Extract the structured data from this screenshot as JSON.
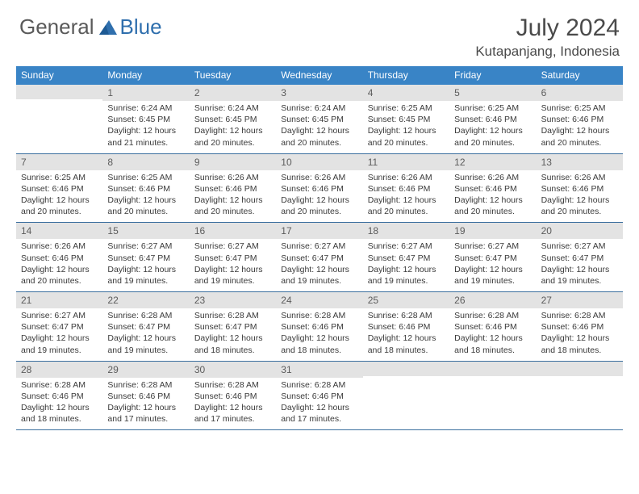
{
  "brand": {
    "word1": "General",
    "word2": "Blue"
  },
  "title": "July 2024",
  "location": "Kutapanjang, Indonesia",
  "colors": {
    "header_bg": "#3984c6",
    "header_text": "#ffffff",
    "daynum_bg": "#e3e3e3",
    "week_border": "#3b6f9e",
    "text": "#3a3a3a"
  },
  "dow": [
    "Sunday",
    "Monday",
    "Tuesday",
    "Wednesday",
    "Thursday",
    "Friday",
    "Saturday"
  ],
  "weeks": [
    [
      {
        "n": "",
        "sr": "",
        "ss": "",
        "dl": ""
      },
      {
        "n": "1",
        "sr": "6:24 AM",
        "ss": "6:45 PM",
        "dl": "12 hours and 21 minutes."
      },
      {
        "n": "2",
        "sr": "6:24 AM",
        "ss": "6:45 PM",
        "dl": "12 hours and 20 minutes."
      },
      {
        "n": "3",
        "sr": "6:24 AM",
        "ss": "6:45 PM",
        "dl": "12 hours and 20 minutes."
      },
      {
        "n": "4",
        "sr": "6:25 AM",
        "ss": "6:45 PM",
        "dl": "12 hours and 20 minutes."
      },
      {
        "n": "5",
        "sr": "6:25 AM",
        "ss": "6:46 PM",
        "dl": "12 hours and 20 minutes."
      },
      {
        "n": "6",
        "sr": "6:25 AM",
        "ss": "6:46 PM",
        "dl": "12 hours and 20 minutes."
      }
    ],
    [
      {
        "n": "7",
        "sr": "6:25 AM",
        "ss": "6:46 PM",
        "dl": "12 hours and 20 minutes."
      },
      {
        "n": "8",
        "sr": "6:25 AM",
        "ss": "6:46 PM",
        "dl": "12 hours and 20 minutes."
      },
      {
        "n": "9",
        "sr": "6:26 AM",
        "ss": "6:46 PM",
        "dl": "12 hours and 20 minutes."
      },
      {
        "n": "10",
        "sr": "6:26 AM",
        "ss": "6:46 PM",
        "dl": "12 hours and 20 minutes."
      },
      {
        "n": "11",
        "sr": "6:26 AM",
        "ss": "6:46 PM",
        "dl": "12 hours and 20 minutes."
      },
      {
        "n": "12",
        "sr": "6:26 AM",
        "ss": "6:46 PM",
        "dl": "12 hours and 20 minutes."
      },
      {
        "n": "13",
        "sr": "6:26 AM",
        "ss": "6:46 PM",
        "dl": "12 hours and 20 minutes."
      }
    ],
    [
      {
        "n": "14",
        "sr": "6:26 AM",
        "ss": "6:46 PM",
        "dl": "12 hours and 20 minutes."
      },
      {
        "n": "15",
        "sr": "6:27 AM",
        "ss": "6:47 PM",
        "dl": "12 hours and 19 minutes."
      },
      {
        "n": "16",
        "sr": "6:27 AM",
        "ss": "6:47 PM",
        "dl": "12 hours and 19 minutes."
      },
      {
        "n": "17",
        "sr": "6:27 AM",
        "ss": "6:47 PM",
        "dl": "12 hours and 19 minutes."
      },
      {
        "n": "18",
        "sr": "6:27 AM",
        "ss": "6:47 PM",
        "dl": "12 hours and 19 minutes."
      },
      {
        "n": "19",
        "sr": "6:27 AM",
        "ss": "6:47 PM",
        "dl": "12 hours and 19 minutes."
      },
      {
        "n": "20",
        "sr": "6:27 AM",
        "ss": "6:47 PM",
        "dl": "12 hours and 19 minutes."
      }
    ],
    [
      {
        "n": "21",
        "sr": "6:27 AM",
        "ss": "6:47 PM",
        "dl": "12 hours and 19 minutes."
      },
      {
        "n": "22",
        "sr": "6:28 AM",
        "ss": "6:47 PM",
        "dl": "12 hours and 19 minutes."
      },
      {
        "n": "23",
        "sr": "6:28 AM",
        "ss": "6:47 PM",
        "dl": "12 hours and 18 minutes."
      },
      {
        "n": "24",
        "sr": "6:28 AM",
        "ss": "6:46 PM",
        "dl": "12 hours and 18 minutes."
      },
      {
        "n": "25",
        "sr": "6:28 AM",
        "ss": "6:46 PM",
        "dl": "12 hours and 18 minutes."
      },
      {
        "n": "26",
        "sr": "6:28 AM",
        "ss": "6:46 PM",
        "dl": "12 hours and 18 minutes."
      },
      {
        "n": "27",
        "sr": "6:28 AM",
        "ss": "6:46 PM",
        "dl": "12 hours and 18 minutes."
      }
    ],
    [
      {
        "n": "28",
        "sr": "6:28 AM",
        "ss": "6:46 PM",
        "dl": "12 hours and 18 minutes."
      },
      {
        "n": "29",
        "sr": "6:28 AM",
        "ss": "6:46 PM",
        "dl": "12 hours and 17 minutes."
      },
      {
        "n": "30",
        "sr": "6:28 AM",
        "ss": "6:46 PM",
        "dl": "12 hours and 17 minutes."
      },
      {
        "n": "31",
        "sr": "6:28 AM",
        "ss": "6:46 PM",
        "dl": "12 hours and 17 minutes."
      },
      {
        "n": "",
        "sr": "",
        "ss": "",
        "dl": ""
      },
      {
        "n": "",
        "sr": "",
        "ss": "",
        "dl": ""
      },
      {
        "n": "",
        "sr": "",
        "ss": "",
        "dl": ""
      }
    ]
  ],
  "labels": {
    "sunrise": "Sunrise: ",
    "sunset": "Sunset: ",
    "daylight": "Daylight: "
  }
}
